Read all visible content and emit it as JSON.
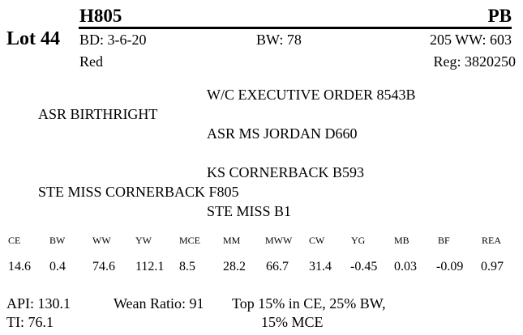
{
  "lot": {
    "label": "Lot 44"
  },
  "animal": {
    "tag": "H805",
    "breed": "PB",
    "birth_date": "BD: 3-6-20",
    "birth_weight": "BW: 78",
    "weaning_weight": "205 WW: 603",
    "color": "Red",
    "registration": "Reg: 3820250"
  },
  "pedigree": {
    "sire_sire": "W/C EXECUTIVE ORDER 8543B",
    "sire": "ASR BIRTHRIGHT",
    "sire_dam": "ASR MS JORDAN D660",
    "dam_sire": "KS CORNERBACK B593",
    "dam": "STE MISS CORNERBACK F805",
    "dam_dam": "STE MISS B1"
  },
  "epd": {
    "headers": [
      "CE",
      "BW",
      "WW",
      "YW",
      "MCE",
      "MM",
      "MWW",
      "CW",
      "YG",
      "MB",
      "BF",
      "REA"
    ],
    "values": [
      "14.6",
      "0.4",
      "74.6",
      "112.1",
      "8.5",
      "28.2",
      "66.7",
      "31.4",
      "-0.45",
      "0.03",
      "-0.09",
      "0.97"
    ]
  },
  "indexes": {
    "api": "API: 130.1",
    "ti": "TI: 76.1",
    "wean_ratio": "Wean Ratio: 91",
    "top_line1": "Top 15% in CE,  25% BW,",
    "top_line2": "15% MCE"
  }
}
